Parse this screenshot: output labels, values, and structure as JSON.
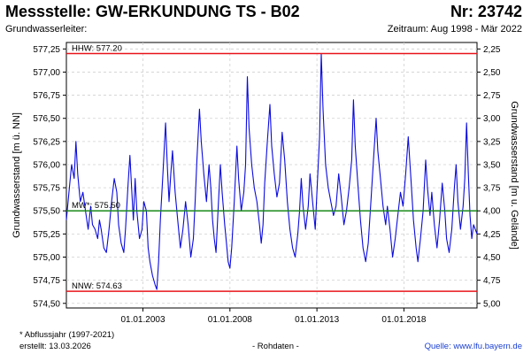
{
  "header": {
    "title": "Messstelle: GW-ERKUNDUNG TS - B02",
    "number": "Nr: 23742",
    "aquifer": "Grundwasserleiter:",
    "period": "Zeitraum: Aug 1998 - Mär 2022"
  },
  "footer": {
    "note": "* Abflussjahr (1997-2021)",
    "created": "erstellt:  13.03.2026",
    "data_type": "- Rohdaten -",
    "source": "Quelle:  www.lfu.bayern.de"
  },
  "chart_data": {
    "type": "line",
    "title": "",
    "ylabel": "Grundwasserstand [m ü. NN]",
    "y2label": "Grundwasserstand [m u. Gelände]",
    "ylim": [
      574.45,
      577.32
    ],
    "yticks": [
      574.5,
      574.75,
      575.0,
      575.25,
      575.5,
      575.75,
      576.0,
      576.25,
      576.5,
      576.75,
      577.0,
      577.25
    ],
    "ytick_labels": [
      "574,50",
      "574,75",
      "575,00",
      "575,25",
      "575,50",
      "575,75",
      "576,00",
      "576,25",
      "576,50",
      "576,75",
      "577,00",
      "577,25"
    ],
    "y2ticks": [
      2.25,
      2.5,
      2.75,
      3.0,
      3.25,
      3.5,
      3.75,
      4.0,
      4.25,
      4.5,
      4.75,
      5.0
    ],
    "y2tick_labels": [
      "2,25",
      "2,50",
      "2,75",
      "3,00",
      "3,25",
      "3,50",
      "3,75",
      "4,00",
      "4,25",
      "4,50",
      "4,75",
      "5,00"
    ],
    "y2_reference_level": 579.5,
    "xlim": [
      1998.6,
      2022.2
    ],
    "xticks": [
      2003.0,
      2008.0,
      2013.0,
      2018.0
    ],
    "xtick_labels": [
      "01.01.2003",
      "01.01.2008",
      "01.01.2013",
      "01.01.2018"
    ],
    "grid": true,
    "reference_lines": [
      {
        "label": "HHW: 577.20",
        "value": 577.2,
        "color": "#e8141b"
      },
      {
        "label": "MW*: 575.50",
        "value": 575.5,
        "color": "#1a8a1a"
      },
      {
        "label": "NNW: 574.63",
        "value": 574.63,
        "color": "#e8141b"
      }
    ],
    "series": [
      {
        "color": "#0a0adf",
        "points": [
          [
            1998.6,
            575.4
          ],
          [
            1998.75,
            575.7
          ],
          [
            1998.9,
            576.0
          ],
          [
            1999.05,
            575.85
          ],
          [
            1999.15,
            576.25
          ],
          [
            1999.25,
            575.9
          ],
          [
            1999.4,
            575.6
          ],
          [
            1999.55,
            575.7
          ],
          [
            1999.7,
            575.5
          ],
          [
            1999.85,
            575.3
          ],
          [
            2000.0,
            575.55
          ],
          [
            2000.1,
            575.35
          ],
          [
            2000.25,
            575.3
          ],
          [
            2000.4,
            575.2
          ],
          [
            2000.5,
            575.4
          ],
          [
            2000.6,
            575.3
          ],
          [
            2000.75,
            575.1
          ],
          [
            2000.9,
            575.05
          ],
          [
            2001.05,
            575.3
          ],
          [
            2001.2,
            575.6
          ],
          [
            2001.35,
            575.85
          ],
          [
            2001.5,
            575.7
          ],
          [
            2001.6,
            575.35
          ],
          [
            2001.75,
            575.15
          ],
          [
            2001.9,
            575.05
          ],
          [
            2002.0,
            575.3
          ],
          [
            2002.15,
            575.8
          ],
          [
            2002.25,
            576.1
          ],
          [
            2002.35,
            575.75
          ],
          [
            2002.45,
            575.4
          ],
          [
            2002.55,
            575.85
          ],
          [
            2002.65,
            575.5
          ],
          [
            2002.8,
            575.2
          ],
          [
            2002.95,
            575.3
          ],
          [
            2003.05,
            575.6
          ],
          [
            2003.2,
            575.5
          ],
          [
            2003.3,
            575.1
          ],
          [
            2003.4,
            574.95
          ],
          [
            2003.55,
            574.8
          ],
          [
            2003.7,
            574.7
          ],
          [
            2003.8,
            574.65
          ],
          [
            2003.9,
            574.95
          ],
          [
            2004.0,
            575.4
          ],
          [
            2004.15,
            575.9
          ],
          [
            2004.3,
            576.45
          ],
          [
            2004.4,
            576.0
          ],
          [
            2004.5,
            575.6
          ],
          [
            2004.6,
            575.9
          ],
          [
            2004.7,
            576.15
          ],
          [
            2004.85,
            575.7
          ],
          [
            2005.0,
            575.4
          ],
          [
            2005.15,
            575.1
          ],
          [
            2005.3,
            575.3
          ],
          [
            2005.45,
            575.6
          ],
          [
            2005.6,
            575.35
          ],
          [
            2005.75,
            575.0
          ],
          [
            2005.9,
            575.2
          ],
          [
            2006.0,
            575.6
          ],
          [
            2006.1,
            576.05
          ],
          [
            2006.25,
            576.6
          ],
          [
            2006.35,
            576.25
          ],
          [
            2006.5,
            575.9
          ],
          [
            2006.65,
            575.6
          ],
          [
            2006.8,
            576.0
          ],
          [
            2006.9,
            575.75
          ],
          [
            2007.0,
            575.4
          ],
          [
            2007.1,
            575.2
          ],
          [
            2007.2,
            575.05
          ],
          [
            2007.3,
            575.45
          ],
          [
            2007.45,
            576.0
          ],
          [
            2007.55,
            575.7
          ],
          [
            2007.7,
            575.35
          ],
          [
            2007.8,
            575.15
          ],
          [
            2007.9,
            574.95
          ],
          [
            2008.0,
            574.88
          ],
          [
            2008.1,
            575.1
          ],
          [
            2008.25,
            575.6
          ],
          [
            2008.4,
            576.2
          ],
          [
            2008.5,
            575.85
          ],
          [
            2008.65,
            575.5
          ],
          [
            2008.8,
            575.7
          ],
          [
            2008.9,
            576.0
          ],
          [
            2009.0,
            576.95
          ],
          [
            2009.1,
            576.4
          ],
          [
            2009.25,
            576.0
          ],
          [
            2009.4,
            575.75
          ],
          [
            2009.55,
            575.6
          ],
          [
            2009.7,
            575.35
          ],
          [
            2009.8,
            575.15
          ],
          [
            2009.9,
            575.35
          ],
          [
            2010.0,
            575.8
          ],
          [
            2010.15,
            576.25
          ],
          [
            2010.3,
            576.65
          ],
          [
            2010.4,
            576.2
          ],
          [
            2010.55,
            575.9
          ],
          [
            2010.7,
            575.65
          ],
          [
            2010.85,
            575.8
          ],
          [
            2011.0,
            576.35
          ],
          [
            2011.15,
            576.05
          ],
          [
            2011.3,
            575.6
          ],
          [
            2011.45,
            575.3
          ],
          [
            2011.6,
            575.1
          ],
          [
            2011.75,
            575.0
          ],
          [
            2011.9,
            575.25
          ],
          [
            2012.0,
            575.5
          ],
          [
            2012.1,
            575.85
          ],
          [
            2012.2,
            575.55
          ],
          [
            2012.35,
            575.3
          ],
          [
            2012.5,
            575.55
          ],
          [
            2012.6,
            575.9
          ],
          [
            2012.75,
            575.6
          ],
          [
            2012.9,
            575.3
          ],
          [
            2013.0,
            575.7
          ],
          [
            2013.15,
            576.3
          ],
          [
            2013.25,
            577.2
          ],
          [
            2013.35,
            576.6
          ],
          [
            2013.5,
            576.0
          ],
          [
            2013.65,
            575.75
          ],
          [
            2013.8,
            575.6
          ],
          [
            2013.95,
            575.45
          ],
          [
            2014.1,
            575.55
          ],
          [
            2014.25,
            575.9
          ],
          [
            2014.4,
            575.65
          ],
          [
            2014.55,
            575.35
          ],
          [
            2014.7,
            575.5
          ],
          [
            2014.85,
            575.75
          ],
          [
            2015.0,
            576.05
          ],
          [
            2015.1,
            576.7
          ],
          [
            2015.2,
            576.2
          ],
          [
            2015.35,
            575.8
          ],
          [
            2015.5,
            575.4
          ],
          [
            2015.65,
            575.1
          ],
          [
            2015.8,
            574.95
          ],
          [
            2015.95,
            575.15
          ],
          [
            2016.1,
            575.6
          ],
          [
            2016.25,
            576.05
          ],
          [
            2016.4,
            576.5
          ],
          [
            2016.5,
            576.15
          ],
          [
            2016.65,
            575.85
          ],
          [
            2016.8,
            575.55
          ],
          [
            2016.95,
            575.35
          ],
          [
            2017.05,
            575.55
          ],
          [
            2017.2,
            575.3
          ],
          [
            2017.35,
            575.0
          ],
          [
            2017.5,
            575.2
          ],
          [
            2017.65,
            575.45
          ],
          [
            2017.8,
            575.7
          ],
          [
            2017.95,
            575.55
          ],
          [
            2018.1,
            575.9
          ],
          [
            2018.25,
            576.3
          ],
          [
            2018.4,
            575.85
          ],
          [
            2018.55,
            575.4
          ],
          [
            2018.7,
            575.1
          ],
          [
            2018.8,
            574.95
          ],
          [
            2018.95,
            575.2
          ],
          [
            2019.1,
            575.5
          ],
          [
            2019.25,
            576.05
          ],
          [
            2019.35,
            575.75
          ],
          [
            2019.5,
            575.45
          ],
          [
            2019.6,
            575.7
          ],
          [
            2019.75,
            575.35
          ],
          [
            2019.9,
            575.1
          ],
          [
            2020.05,
            575.4
          ],
          [
            2020.2,
            575.8
          ],
          [
            2020.35,
            575.5
          ],
          [
            2020.45,
            575.2
          ],
          [
            2020.6,
            575.05
          ],
          [
            2020.75,
            575.3
          ],
          [
            2020.9,
            575.75
          ],
          [
            2021.0,
            576.0
          ],
          [
            2021.1,
            575.6
          ],
          [
            2021.25,
            575.3
          ],
          [
            2021.4,
            575.55
          ],
          [
            2021.5,
            575.85
          ],
          [
            2021.6,
            576.45
          ],
          [
            2021.7,
            575.9
          ],
          [
            2021.8,
            575.45
          ],
          [
            2021.9,
            575.2
          ],
          [
            2022.0,
            575.35
          ],
          [
            2022.2,
            575.25
          ]
        ]
      }
    ]
  }
}
